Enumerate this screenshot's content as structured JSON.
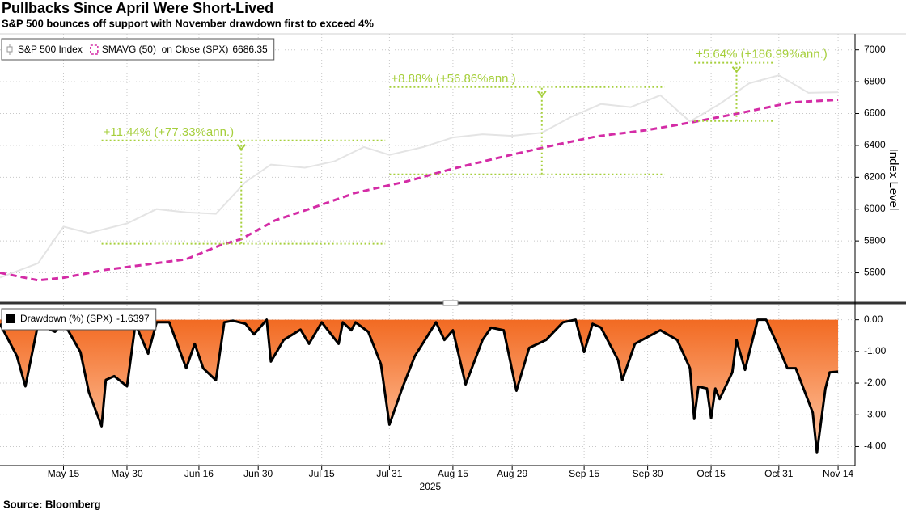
{
  "chart_data": [
    {
      "type": "line",
      "title": "Pullbacks Since April Were Short-Lived",
      "subtitle": "S&P 500 bounces off support with November drawdown first to exceed 4%",
      "source": "Source: Bloomberg",
      "ylabel": "Index Level",
      "xlim": [
        "2025-04-30",
        "2025-11-18"
      ],
      "ylim": [
        5420,
        7100
      ],
      "yticks": [
        5600,
        5800,
        6000,
        6200,
        6400,
        6600,
        6800,
        7000
      ],
      "grid": true,
      "legend": "upper left",
      "series": [
        {
          "name": "S&P 500 Index",
          "color": "#e4e4e4",
          "x": [
            "2025-04-30",
            "2025-05-09",
            "2025-05-15",
            "2025-05-21",
            "2025-05-30",
            "2025-06-06",
            "2025-06-13",
            "2025-06-20",
            "2025-06-27",
            "2025-07-03",
            "2025-07-11",
            "2025-07-18",
            "2025-07-25",
            "2025-07-31",
            "2025-08-08",
            "2025-08-15",
            "2025-08-22",
            "2025-08-29",
            "2025-09-05",
            "2025-09-12",
            "2025-09-19",
            "2025-09-26",
            "2025-10-03",
            "2025-10-10",
            "2025-10-17",
            "2025-10-24",
            "2025-10-31",
            "2025-11-07",
            "2025-11-14"
          ],
          "values": [
            5570,
            5660,
            5890,
            5850,
            5910,
            6000,
            5980,
            5970,
            6170,
            6280,
            6260,
            6300,
            6390,
            6340,
            6390,
            6450,
            6470,
            6460,
            6480,
            6580,
            6660,
            6640,
            6715,
            6550,
            6660,
            6790,
            6840,
            6730,
            6734
          ]
        },
        {
          "name": "SMAVG (50)  on Close (SPX)",
          "color": "#d42ca6",
          "dash": true,
          "x": [
            "2025-04-30",
            "2025-05-09",
            "2025-05-15",
            "2025-05-25",
            "2025-06-03",
            "2025-06-13",
            "2025-06-21",
            "2025-06-26",
            "2025-07-04",
            "2025-07-12",
            "2025-07-23",
            "2025-08-04",
            "2025-08-15",
            "2025-08-27",
            "2025-09-07",
            "2025-09-18",
            "2025-09-30",
            "2025-10-11",
            "2025-10-23",
            "2025-11-03",
            "2025-11-14"
          ],
          "values": [
            5600,
            5553,
            5569,
            5619,
            5650,
            5685,
            5772,
            5812,
            5929,
            6000,
            6102,
            6173,
            6254,
            6330,
            6396,
            6457,
            6497,
            6548,
            6609,
            6670,
            6686.35
          ]
        }
      ],
      "annotations": [
        {
          "label": "+11.44% (+77.33%ann.)",
          "low": 5782,
          "high": 6431,
          "x_start": "2025-05-24",
          "x_end": "2025-07-30",
          "x_arrow": "2025-06-26"
        },
        {
          "label": "+8.88% (+56.86%ann.)",
          "low": 6218,
          "high": 6766,
          "x_start": "2025-07-31",
          "x_end": "2025-10-04",
          "x_arrow": "2025-09-05"
        },
        {
          "label": "+5.64% (+186.99%ann.)",
          "low": 6553,
          "high": 6919,
          "x_start": "2025-10-11",
          "x_end": "2025-10-30",
          "x_arrow": "2025-10-21"
        }
      ],
      "annotation_color": "#a6cf3c"
    },
    {
      "type": "area",
      "xlim": [
        "2025-04-30",
        "2025-11-18"
      ],
      "ylim": [
        -4.6,
        0.45
      ],
      "yticks": [
        {
          "value": 0,
          "label": "0.00"
        },
        {
          "value": -1,
          "label": "-1.00"
        },
        {
          "value": -2,
          "label": "-2.00"
        },
        {
          "value": -3,
          "label": "-3.00"
        },
        {
          "value": -4,
          "label": "-4.00"
        }
      ],
      "xticks": [
        {
          "value": "2025-05-15",
          "label": "May 15"
        },
        {
          "value": "2025-05-30",
          "label": "May 30"
        },
        {
          "value": "2025-06-16",
          "label": "Jun 16"
        },
        {
          "value": "2025-06-30",
          "label": "Jun 30"
        },
        {
          "value": "2025-07-15",
          "label": "Jul 15"
        },
        {
          "value": "2025-07-31",
          "label": "Jul 31"
        },
        {
          "value": "2025-08-15",
          "label": "Aug 15"
        },
        {
          "value": "2025-08-29",
          "label": "Aug 29"
        },
        {
          "value": "2025-09-15",
          "label": "Sep 15"
        },
        {
          "value": "2025-09-30",
          "label": "Sep 30"
        },
        {
          "value": "2025-10-15",
          "label": "Oct 15"
        },
        {
          "value": "2025-10-31",
          "label": "Oct 31"
        },
        {
          "value": "2025-11-14",
          "label": "Nov 14"
        }
      ],
      "xlabel": "2025",
      "grid": true,
      "legend": "upper left",
      "series": [
        {
          "name": "Drawdown (%) (SPX)",
          "color": "#f26a22",
          "x": [
            "2025-04-30",
            "2025-05-04",
            "2025-05-06",
            "2025-05-09",
            "2025-05-13",
            "2025-05-15",
            "2025-05-19",
            "2025-05-21",
            "2025-05-24",
            "2025-05-25",
            "2025-05-27",
            "2025-05-30",
            "2025-06-01",
            "2025-06-04",
            "2025-06-06",
            "2025-06-09",
            "2025-06-13",
            "2025-06-15",
            "2025-06-17",
            "2025-06-20",
            "2025-06-22",
            "2025-06-24",
            "2025-06-27",
            "2025-06-29",
            "2025-07-02",
            "2025-07-03",
            "2025-07-06",
            "2025-07-10",
            "2025-07-12",
            "2025-07-15",
            "2025-07-18",
            "2025-07-19",
            "2025-07-20",
            "2025-07-22",
            "2025-07-23",
            "2025-07-26",
            "2025-07-29",
            "2025-07-31",
            "2025-08-03",
            "2025-08-06",
            "2025-08-11",
            "2025-08-13",
            "2025-08-15",
            "2025-08-18",
            "2025-08-22",
            "2025-08-24",
            "2025-08-27",
            "2025-08-30",
            "2025-09-02",
            "2025-09-06",
            "2025-09-10",
            "2025-09-13",
            "2025-09-15",
            "2025-09-17",
            "2025-09-19",
            "2025-09-23",
            "2025-09-24",
            "2025-09-27",
            "2025-10-03",
            "2025-10-07",
            "2025-10-10",
            "2025-10-11",
            "2025-10-12",
            "2025-10-14",
            "2025-10-15",
            "2025-10-16",
            "2025-10-17",
            "2025-10-20",
            "2025-10-21",
            "2025-10-23",
            "2025-10-26",
            "2025-10-28",
            "2025-10-31",
            "2025-11-02",
            "2025-11-04",
            "2025-11-08",
            "2025-11-09",
            "2025-11-11",
            "2025-11-12",
            "2025-11-14"
          ],
          "values": [
            -0.13,
            -1.15,
            -2.1,
            -0.13,
            -0.38,
            -0.08,
            -1.02,
            -2.29,
            -3.36,
            -1.9,
            -1.78,
            -2.1,
            -0.13,
            -1.07,
            -0.08,
            -0.08,
            -1.53,
            -0.76,
            -1.53,
            -1.91,
            -0.08,
            -0.03,
            -0.13,
            -0.46,
            0.0,
            -1.32,
            -0.64,
            -0.31,
            -0.76,
            -0.08,
            -0.59,
            -0.76,
            -0.08,
            -0.33,
            -0.08,
            -0.38,
            -1.4,
            -3.31,
            -2.17,
            -1.15,
            -0.08,
            -0.64,
            -0.33,
            -2.04,
            -0.64,
            -0.25,
            -0.33,
            -2.24,
            -0.89,
            -0.64,
            -0.08,
            0.0,
            -1.02,
            -0.13,
            -0.25,
            -1.27,
            -1.91,
            -0.76,
            -0.33,
            -0.64,
            -1.53,
            -3.13,
            -2.11,
            -2.17,
            -3.11,
            -2.17,
            -2.5,
            -1.66,
            -0.64,
            -1.58,
            0.0,
            0.0,
            -0.89,
            -1.53,
            -1.53,
            -2.93,
            -4.2,
            -2.17,
            -1.66,
            -1.6397
          ]
        }
      ]
    }
  ]
}
